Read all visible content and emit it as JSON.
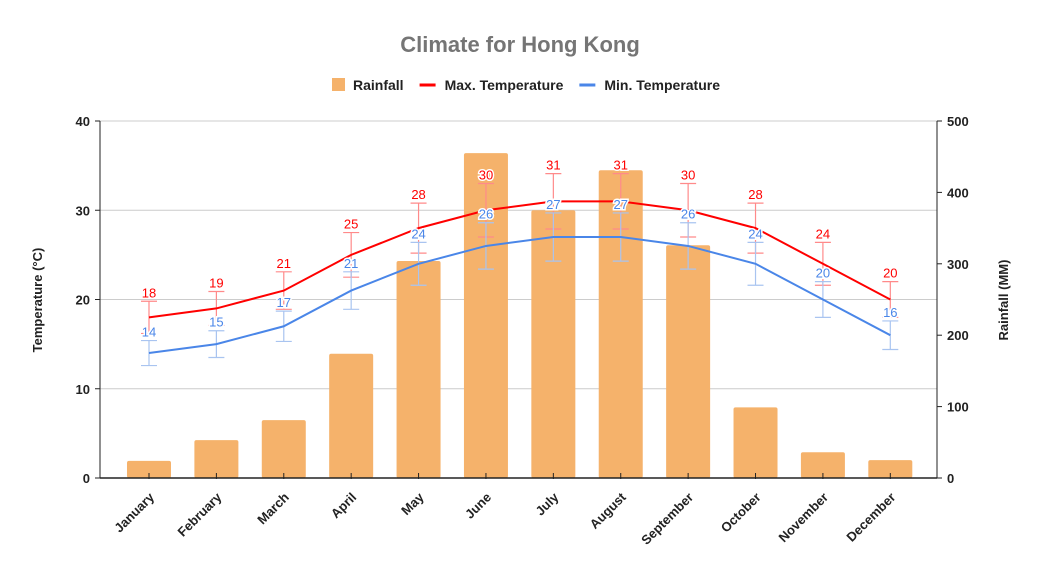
{
  "chart_data": {
    "type": "bar+line",
    "title": "Climate for Hong Kong",
    "categories": [
      "January",
      "February",
      "March",
      "April",
      "May",
      "June",
      "July",
      "August",
      "September",
      "October",
      "November",
      "December"
    ],
    "series": [
      {
        "name": "Rainfall",
        "type": "bar",
        "axis": "right",
        "color": "#f5b26b",
        "values": [
          24,
          53,
          81,
          174,
          304,
          455,
          375,
          431,
          326,
          99,
          36,
          25
        ]
      },
      {
        "name": "Max. Temperature",
        "type": "line",
        "axis": "left",
        "color": "#ff0000",
        "values": [
          18,
          19,
          21,
          25,
          28,
          30,
          31,
          31,
          30,
          28,
          24,
          20
        ],
        "error_percent": 10
      },
      {
        "name": "Min. Temperature",
        "type": "line",
        "axis": "left",
        "color": "#4a86e8",
        "values": [
          14,
          15,
          17,
          21,
          24,
          26,
          27,
          27,
          26,
          24,
          20,
          16
        ],
        "error_percent": 10
      }
    ],
    "ylabel": "Temperature (°C)",
    "y2label": "Rainfall (MM)",
    "ylim": [
      0,
      40
    ],
    "y2lim": [
      0,
      500
    ],
    "yticks": [
      0,
      10,
      20,
      30,
      40
    ],
    "y2ticks": [
      0,
      100,
      200,
      300,
      400,
      500
    ],
    "grid": true,
    "legend_position": "top"
  }
}
